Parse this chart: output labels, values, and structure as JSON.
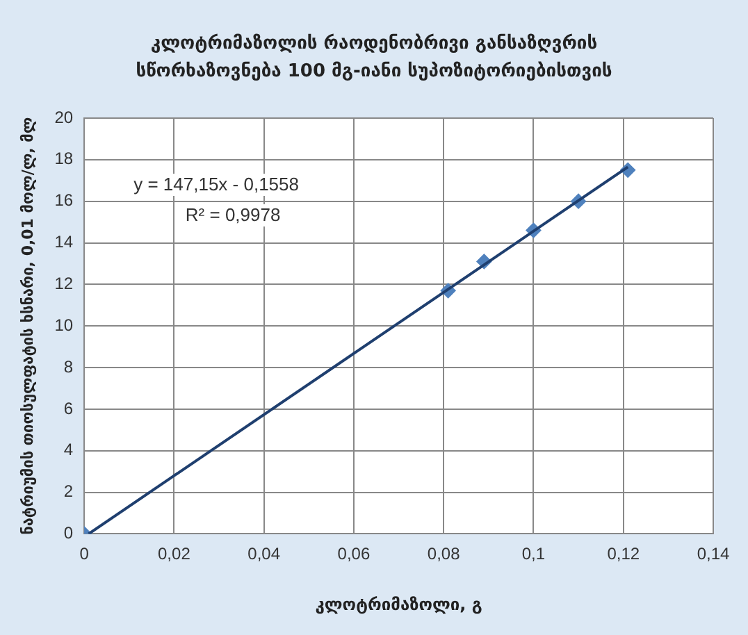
{
  "chart_data": {
    "type": "scatter",
    "title": "კლოტრიმაზოლის რაოდენობრივი განსაზღვრის სწორხაზოვნება 100 მგ-იანი სუპოზიტორიებისთვის",
    "xlabel": "კლოტრიმაზოლი, გ",
    "ylabel": "ნატრიუმის თიოსულფატის ხსნარი, 0,01 მოლ/ლ, მლ",
    "series": [
      {
        "color": "#4f81bd",
        "marker": "diamond",
        "x": [
          0,
          0.081,
          0.089,
          0.1,
          0.11,
          0.121
        ],
        "values": [
          0,
          11.7,
          13.1,
          14.6,
          16,
          17.5
        ]
      },
      {
        "type": "line",
        "marker": "none",
        "color": "#1f3f6f",
        "x": [
          0.001,
          0.121
        ],
        "values": [
          0,
          17.65
        ]
      }
    ],
    "annotations": [
      "y = 147,15x - 0,1558",
      "R² = 0,9978"
    ],
    "xlim": [
      0,
      0.14
    ],
    "xticks": [
      {
        "value": 0,
        "label": "0"
      },
      {
        "value": 0.02,
        "label": "0,02"
      },
      {
        "value": 0.04,
        "label": "0,04"
      },
      {
        "value": 0.06,
        "label": "0,06"
      },
      {
        "value": 0.08,
        "label": "0,08"
      },
      {
        "value": 0.1,
        "label": "0,1"
      },
      {
        "value": 0.12,
        "label": "0,12"
      },
      {
        "value": 0.14,
        "label": "0,14"
      }
    ],
    "ylim": [
      0,
      20
    ],
    "yticks": [
      0,
      2,
      4,
      6,
      8,
      10,
      12,
      14,
      16,
      18,
      20
    ],
    "grid": true
  }
}
